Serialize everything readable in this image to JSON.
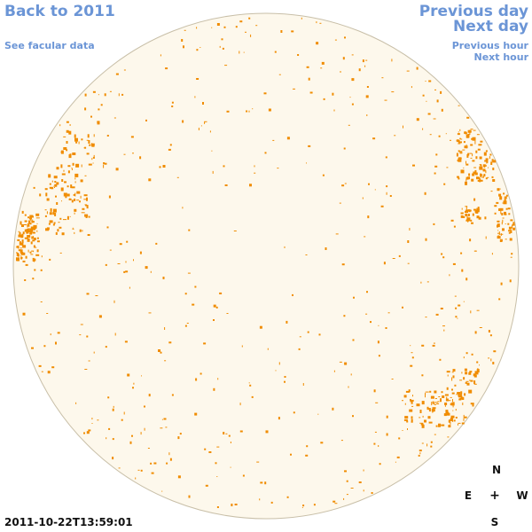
{
  "nav": {
    "back_label": "Back to 2011",
    "facular_label": "See facular data",
    "prev_day_label": "Previous day",
    "next_day_label": "Next day",
    "prev_hour_label": "Previous hour",
    "next_hour_label": "Next hour"
  },
  "compass": {
    "north": "N",
    "east": "E",
    "center": "+",
    "west": "W",
    "south": "S"
  },
  "timestamp": "2011-10-22T13:59:01",
  "colors": {
    "link": "#6b95d6",
    "disk_fill": "#fdf8ec",
    "disk_border": "#c8bfa8",
    "magnetic_feature": "#f08c00"
  }
}
